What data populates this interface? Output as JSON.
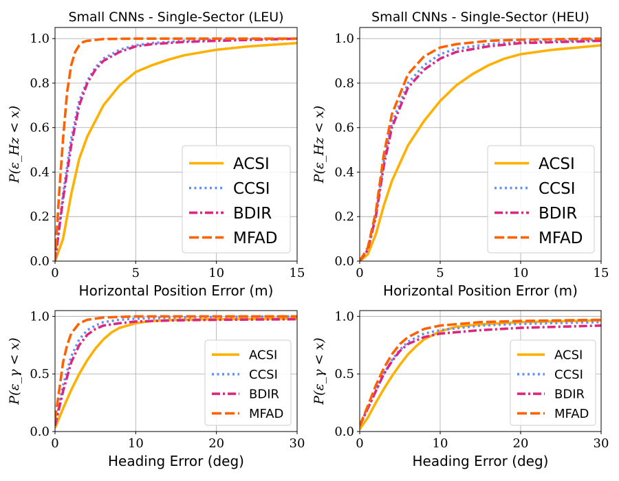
{
  "series_styles": [
    {
      "name": "ACSI",
      "color": "#ffb000",
      "dash": "solid"
    },
    {
      "name": "CCSI",
      "color": "#648fff",
      "dash": "dotted"
    },
    {
      "name": "BDIR",
      "color": "#dc267f",
      "dash": "dashdot"
    },
    {
      "name": "MFAD",
      "color": "#fe6100",
      "dash": "dashed"
    }
  ],
  "chart_data": [
    {
      "type": "line",
      "title": "Small CNNs - Single-Sector (LEU)",
      "xlabel": "Horizontal Position Error (m)",
      "ylabel": "P(ε_Hz < x)",
      "xlim": [
        0,
        15
      ],
      "ylim": [
        0,
        1.05
      ],
      "xticks": [
        0,
        5,
        10,
        15
      ],
      "yticks": [
        0.0,
        0.2,
        0.4,
        0.6,
        0.8,
        1.0
      ],
      "xtick_labels": [
        "0",
        "5",
        "10",
        "15"
      ],
      "ytick_labels": [
        "0.0",
        "0.2",
        "0.4",
        "0.6",
        "0.8",
        "1.0"
      ],
      "grid": true,
      "legend": "lower-right",
      "legend_size": "large",
      "series": [
        {
          "name": "ACSI",
          "x": [
            0,
            0.5,
            1,
            1.5,
            2,
            3,
            4,
            5,
            6,
            7,
            8,
            10,
            12,
            15
          ],
          "y": [
            0,
            0.1,
            0.3,
            0.46,
            0.56,
            0.7,
            0.79,
            0.85,
            0.88,
            0.905,
            0.925,
            0.95,
            0.965,
            0.98
          ]
        },
        {
          "name": "CCSI",
          "x": [
            0,
            0.5,
            1,
            1.5,
            2,
            2.5,
            3,
            4,
            5,
            6,
            8,
            10,
            15
          ],
          "y": [
            0,
            0.3,
            0.55,
            0.72,
            0.81,
            0.87,
            0.91,
            0.95,
            0.97,
            0.98,
            0.99,
            0.995,
            1.0
          ]
        },
        {
          "name": "BDIR",
          "x": [
            0,
            0.5,
            1,
            1.5,
            2,
            2.5,
            3,
            4,
            5,
            6,
            8,
            10,
            15
          ],
          "y": [
            0,
            0.28,
            0.52,
            0.7,
            0.8,
            0.86,
            0.9,
            0.94,
            0.965,
            0.975,
            0.985,
            0.99,
            1.0
          ]
        },
        {
          "name": "MFAD",
          "x": [
            0,
            0.25,
            0.5,
            0.75,
            1,
            1.25,
            1.5,
            1.75,
            2,
            3,
            5,
            15
          ],
          "y": [
            0,
            0.3,
            0.55,
            0.76,
            0.88,
            0.94,
            0.97,
            0.985,
            0.99,
            0.998,
            1.0,
            1.0
          ]
        }
      ]
    },
    {
      "type": "line",
      "title": "Small CNNs - Single-Sector (HEU)",
      "xlabel": "Horizontal Position Error (m)",
      "ylabel": "P(ε_Hz < x)",
      "xlim": [
        0,
        15
      ],
      "ylim": [
        0,
        1.05
      ],
      "xticks": [
        0,
        5,
        10,
        15
      ],
      "yticks": [
        0.0,
        0.2,
        0.4,
        0.6,
        0.8,
        1.0
      ],
      "xtick_labels": [
        "0",
        "5",
        "10",
        "15"
      ],
      "ytick_labels": [
        "0.0",
        "0.2",
        "0.4",
        "0.6",
        "0.8",
        "1.0"
      ],
      "grid": true,
      "legend": "lower-right",
      "legend_size": "large",
      "series": [
        {
          "name": "ACSI",
          "x": [
            0,
            0.5,
            1,
            1.5,
            2,
            3,
            4,
            5,
            6,
            7,
            8,
            9,
            10,
            12,
            15
          ],
          "y": [
            0,
            0.03,
            0.12,
            0.25,
            0.36,
            0.52,
            0.63,
            0.72,
            0.79,
            0.84,
            0.88,
            0.91,
            0.93,
            0.95,
            0.97
          ]
        },
        {
          "name": "CCSI",
          "x": [
            0,
            0.5,
            1,
            1.5,
            2,
            3,
            4,
            5,
            6,
            8,
            10,
            15
          ],
          "y": [
            0,
            0.05,
            0.2,
            0.45,
            0.62,
            0.8,
            0.88,
            0.93,
            0.955,
            0.975,
            0.985,
            0.995
          ]
        },
        {
          "name": "BDIR",
          "x": [
            0,
            0.5,
            1,
            1.5,
            2,
            3,
            4,
            5,
            6,
            8,
            10,
            15
          ],
          "y": [
            0,
            0.05,
            0.2,
            0.43,
            0.6,
            0.78,
            0.86,
            0.91,
            0.94,
            0.965,
            0.98,
            0.99
          ]
        },
        {
          "name": "MFAD",
          "x": [
            0,
            0.5,
            1,
            1.5,
            2,
            3,
            4,
            5,
            6,
            8,
            10,
            15
          ],
          "y": [
            0,
            0.06,
            0.22,
            0.48,
            0.66,
            0.84,
            0.92,
            0.96,
            0.975,
            0.99,
            0.995,
            1.0
          ]
        }
      ]
    },
    {
      "type": "line",
      "title": "",
      "xlabel": "Heading Error (deg)",
      "ylabel": "P(ε_γ < x)",
      "xlim": [
        0,
        30
      ],
      "ylim": [
        0,
        1.05
      ],
      "xticks": [
        0,
        10,
        20,
        30
      ],
      "yticks": [
        0.0,
        0.5,
        1.0
      ],
      "xtick_labels": [
        "0",
        "10",
        "20",
        "30"
      ],
      "ytick_labels": [
        "0.0",
        "0.5",
        "1.0"
      ],
      "grid": true,
      "legend": "lower-right",
      "legend_size": "small",
      "series": [
        {
          "name": "ACSI",
          "x": [
            0,
            1,
            2,
            3,
            4,
            5,
            6,
            7,
            8,
            10,
            12,
            15,
            20,
            30
          ],
          "y": [
            0.03,
            0.2,
            0.36,
            0.5,
            0.62,
            0.72,
            0.8,
            0.86,
            0.9,
            0.94,
            0.96,
            0.97,
            0.975,
            0.98
          ]
        },
        {
          "name": "CCSI",
          "x": [
            0,
            1,
            2,
            3,
            4,
            5,
            6,
            8,
            10,
            15,
            20,
            30
          ],
          "y": [
            0.05,
            0.4,
            0.65,
            0.8,
            0.88,
            0.92,
            0.95,
            0.97,
            0.98,
            0.99,
            0.995,
            1.0
          ]
        },
        {
          "name": "BDIR",
          "x": [
            0,
            1,
            2,
            3,
            4,
            5,
            6,
            8,
            10,
            15,
            20,
            30
          ],
          "y": [
            0.05,
            0.35,
            0.6,
            0.75,
            0.84,
            0.89,
            0.92,
            0.94,
            0.955,
            0.965,
            0.97,
            0.975
          ]
        },
        {
          "name": "MFAD",
          "x": [
            0,
            0.5,
            1,
            1.5,
            2,
            3,
            4,
            5,
            6,
            8,
            10,
            30
          ],
          "y": [
            0.1,
            0.35,
            0.6,
            0.75,
            0.85,
            0.94,
            0.97,
            0.98,
            0.99,
            0.995,
            1.0,
            1.0
          ]
        }
      ]
    },
    {
      "type": "line",
      "title": "",
      "xlabel": "Heading Error (deg)",
      "ylabel": "P(ε_γ < x)",
      "xlim": [
        0,
        30
      ],
      "ylim": [
        0,
        1.05
      ],
      "xticks": [
        0,
        10,
        20,
        30
      ],
      "yticks": [
        0.0,
        0.5,
        1.0
      ],
      "xtick_labels": [
        "0",
        "10",
        "20",
        "30"
      ],
      "ytick_labels": [
        "0.0",
        "0.5",
        "1.0"
      ],
      "grid": true,
      "legend": "lower-right",
      "legend_size": "small",
      "series": [
        {
          "name": "ACSI",
          "x": [
            0,
            1,
            2,
            3,
            4,
            5,
            6,
            7,
            8,
            10,
            12,
            15,
            20,
            30
          ],
          "y": [
            0.02,
            0.12,
            0.25,
            0.37,
            0.48,
            0.58,
            0.67,
            0.74,
            0.8,
            0.87,
            0.91,
            0.93,
            0.95,
            0.965
          ]
        },
        {
          "name": "CCSI",
          "x": [
            0,
            1,
            2,
            3,
            4,
            5,
            6,
            8,
            10,
            15,
            20,
            30
          ],
          "y": [
            0.05,
            0.2,
            0.35,
            0.5,
            0.62,
            0.71,
            0.78,
            0.85,
            0.88,
            0.92,
            0.935,
            0.95
          ]
        },
        {
          "name": "BDIR",
          "x": [
            0,
            1,
            2,
            3,
            4,
            5,
            6,
            8,
            10,
            15,
            20,
            30
          ],
          "y": [
            0.05,
            0.2,
            0.35,
            0.5,
            0.61,
            0.7,
            0.76,
            0.82,
            0.85,
            0.88,
            0.9,
            0.92
          ]
        },
        {
          "name": "MFAD",
          "x": [
            0,
            1,
            2,
            3,
            4,
            5,
            6,
            8,
            10,
            15,
            20,
            30
          ],
          "y": [
            0.05,
            0.22,
            0.4,
            0.55,
            0.67,
            0.76,
            0.82,
            0.89,
            0.92,
            0.95,
            0.96,
            0.97
          ]
        }
      ]
    }
  ]
}
